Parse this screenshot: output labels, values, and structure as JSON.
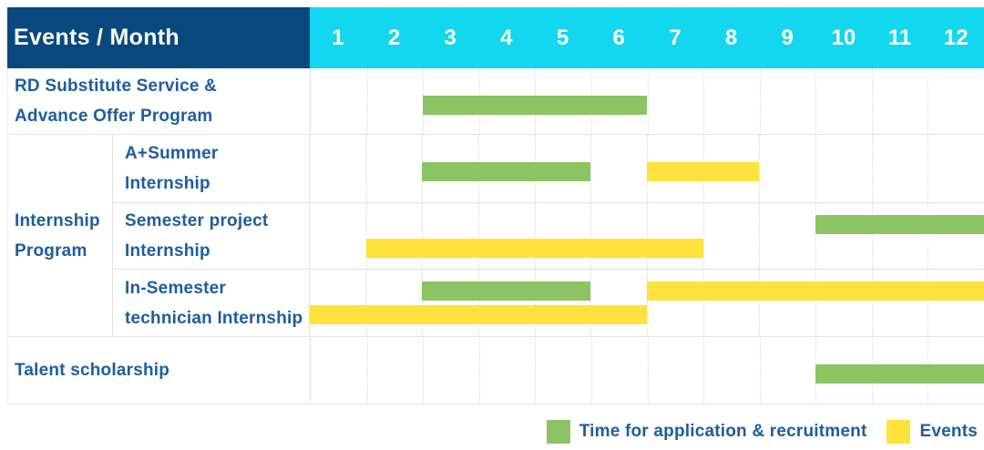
{
  "header": {
    "label": "Events / Month",
    "months": [
      "1",
      "2",
      "3",
      "4",
      "5",
      "6",
      "7",
      "8",
      "9",
      "10",
      "11",
      "12"
    ]
  },
  "colors": {
    "header_navy": "#08487E",
    "header_cyan": "#12D7EE",
    "application_green": "#8CC463",
    "event_yellow": "#FFE23B",
    "label_blue": "#1E5C9F"
  },
  "legend": {
    "items": [
      {
        "key": "application",
        "label": "Time for application & recruitment",
        "color": "#8CC463"
      },
      {
        "key": "event",
        "label": "Events",
        "color": "#FFE23B"
      }
    ]
  },
  "chart_data": {
    "type": "gantt",
    "unit": "month",
    "x_domain": [
      1,
      12
    ],
    "x_ticks": [
      "1",
      "2",
      "3",
      "4",
      "5",
      "6",
      "7",
      "8",
      "9",
      "10",
      "11",
      "12"
    ],
    "corner_label": "Events / Month",
    "bar_types": {
      "application": {
        "label": "Time for application & recruitment",
        "color": "#8CC463"
      },
      "event": {
        "label": "Events",
        "color": "#FFE23B"
      }
    },
    "rows": [
      {
        "label": "RD Substitute Service &\nAdvance Offer Program",
        "group": "",
        "lanes": 1,
        "bars": [
          {
            "type": "application",
            "start_month": 3,
            "end_month": 6,
            "lane": 0
          }
        ]
      },
      {
        "label": "A+Summer\nInternship",
        "group": "Internship Program",
        "lanes": 1,
        "bars": [
          {
            "type": "application",
            "start_month": 3,
            "end_month": 5,
            "lane": 0
          },
          {
            "type": "event",
            "start_month": 7,
            "end_month": 8,
            "lane": 0
          }
        ]
      },
      {
        "label": "Semester project\nInternship",
        "group": "Internship Program",
        "lanes": 2,
        "bars": [
          {
            "type": "application",
            "start_month": 10,
            "end_month": 12,
            "lane": 0
          },
          {
            "type": "event",
            "start_month": 2,
            "end_month": 7,
            "lane": 1
          }
        ]
      },
      {
        "label": "In-Semester\ntechnician Internship",
        "group": "Internship Program",
        "lanes": 2,
        "bars": [
          {
            "type": "application",
            "start_month": 3,
            "end_month": 5,
            "lane": 0
          },
          {
            "type": "event",
            "start_month": 7,
            "end_month": 12,
            "lane": 0
          },
          {
            "type": "event",
            "start_month": 1,
            "end_month": 6,
            "lane": 1
          }
        ]
      },
      {
        "label": "Talent scholarship",
        "group": "",
        "lanes": 1,
        "bars": [
          {
            "type": "application",
            "start_month": 10,
            "end_month": 12,
            "lane": 0
          }
        ]
      }
    ]
  }
}
